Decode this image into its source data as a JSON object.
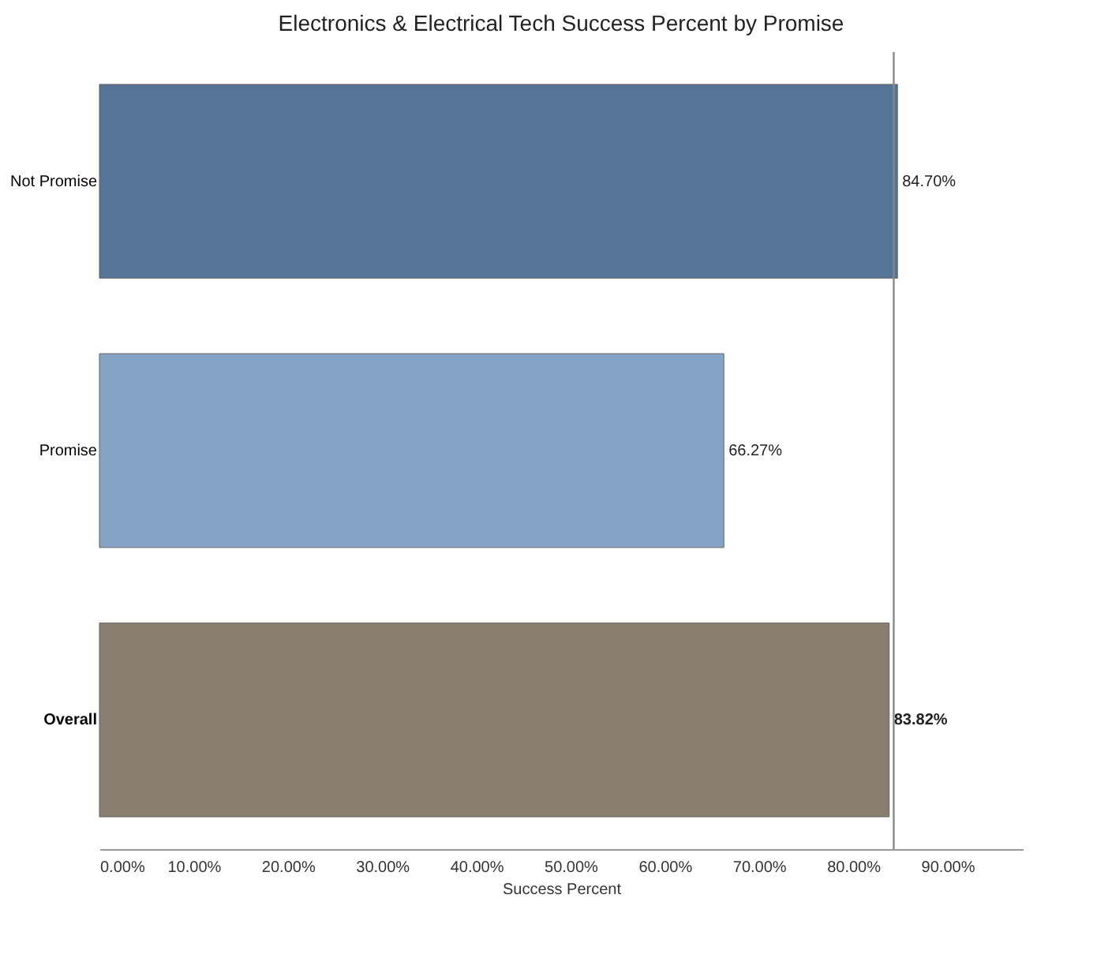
{
  "chart_data": {
    "type": "bar",
    "orientation": "horizontal",
    "title": "Electronics & Electrical Tech Success Percent by Promise",
    "xlabel": "Success Percent",
    "categories": [
      "Not Promise",
      "Promise",
      "Overall"
    ],
    "values": [
      84.7,
      66.27,
      83.82
    ],
    "colors": [
      "#4e6d92",
      "#7f9fc2",
      "#837868"
    ],
    "value_labels": [
      "84.70%",
      "66.27%",
      "83.82%"
    ],
    "xlim": [
      0,
      98
    ],
    "xticks": [
      {
        "value": 0,
        "label": "0.00%"
      },
      {
        "value": 10,
        "label": "10.00%"
      },
      {
        "value": 20,
        "label": "20.00%"
      },
      {
        "value": 30,
        "label": "30.00%"
      },
      {
        "value": 40,
        "label": "40.00%"
      },
      {
        "value": 50,
        "label": "50.00%"
      },
      {
        "value": 60,
        "label": "60.00%"
      },
      {
        "value": 70,
        "label": "70.00%"
      },
      {
        "value": 80,
        "label": "80.00%"
      },
      {
        "value": 90,
        "label": "90.00%"
      }
    ],
    "ref_lines": [
      {
        "axis": "x",
        "value": 84.3,
        "color": "#888888"
      }
    ],
    "grid": false
  }
}
